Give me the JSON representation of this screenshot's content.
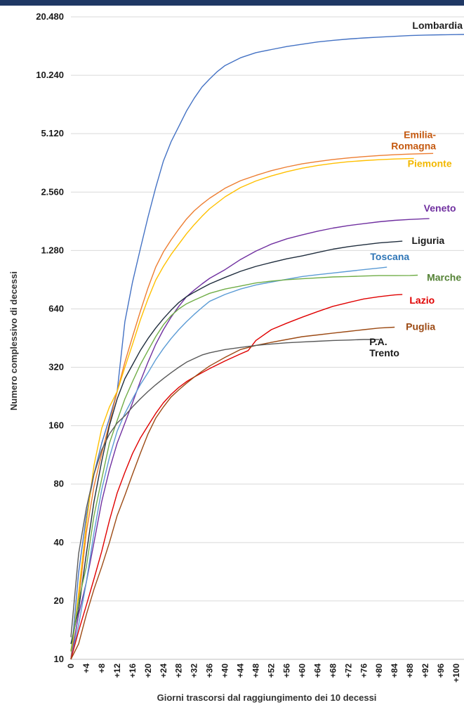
{
  "chart_data": {
    "type": "line",
    "title": "",
    "xlabel": "Giorni trascorsi dal raggiungimento dei 10 decessi",
    "ylabel": "Numero complessivo di decessi",
    "yscale": "log2",
    "ylim": [
      10,
      20480
    ],
    "xlim": [
      0,
      102
    ],
    "grid": true,
    "legend": "labels-at-line-ends",
    "y_ticks": [
      {
        "value": 10,
        "label": "10"
      },
      {
        "value": 20,
        "label": "20"
      },
      {
        "value": 40,
        "label": "40"
      },
      {
        "value": 80,
        "label": "80"
      },
      {
        "value": 160,
        "label": "160"
      },
      {
        "value": 320,
        "label": "320"
      },
      {
        "value": 640,
        "label": "640"
      },
      {
        "value": 1280,
        "label": "1.280"
      },
      {
        "value": 2560,
        "label": "2.560"
      },
      {
        "value": 5120,
        "label": "5.120"
      },
      {
        "value": 10240,
        "label": "10.240"
      },
      {
        "value": 20480,
        "label": "20.480"
      }
    ],
    "x_ticks": [
      {
        "value": 0,
        "label": "0"
      },
      {
        "value": 4,
        "label": "+4"
      },
      {
        "value": 8,
        "label": "+8"
      },
      {
        "value": 12,
        "label": "+12"
      },
      {
        "value": 16,
        "label": "+16"
      },
      {
        "value": 20,
        "label": "+20"
      },
      {
        "value": 24,
        "label": "+24"
      },
      {
        "value": 28,
        "label": "+28"
      },
      {
        "value": 32,
        "label": "+32"
      },
      {
        "value": 36,
        "label": "+36"
      },
      {
        "value": 40,
        "label": "+40"
      },
      {
        "value": 44,
        "label": "+44"
      },
      {
        "value": 48,
        "label": "+48"
      },
      {
        "value": 52,
        "label": "+52"
      },
      {
        "value": 56,
        "label": "+56"
      },
      {
        "value": 60,
        "label": "+60"
      },
      {
        "value": 64,
        "label": "+64"
      },
      {
        "value": 68,
        "label": "+68"
      },
      {
        "value": 72,
        "label": "+72"
      },
      {
        "value": 76,
        "label": "+76"
      },
      {
        "value": 80,
        "label": "+80"
      },
      {
        "value": 84,
        "label": "+84"
      },
      {
        "value": 88,
        "label": "+88"
      },
      {
        "value": 92,
        "label": "+92"
      },
      {
        "value": 96,
        "label": "+96"
      },
      {
        "value": 100,
        "label": "+100"
      }
    ],
    "series": [
      {
        "name": "Lombardia",
        "color": "#4472c4",
        "x": [
          0,
          2,
          4,
          6,
          8,
          10,
          12,
          14,
          16,
          18,
          20,
          22,
          24,
          26,
          28,
          30,
          32,
          34,
          36,
          38,
          40,
          44,
          48,
          52,
          56,
          60,
          64,
          68,
          72,
          76,
          80,
          84,
          88,
          92,
          96,
          100,
          102
        ],
        "y": [
          10,
          28,
          55,
          90,
          130,
          175,
          240,
          550,
          880,
          1300,
          1900,
          2700,
          3700,
          4650,
          5580,
          6700,
          7800,
          8900,
          9800,
          10700,
          11500,
          12600,
          13400,
          13900,
          14400,
          14800,
          15200,
          15500,
          15750,
          15950,
          16100,
          16250,
          16400,
          16500,
          16550,
          16600,
          16620
        ]
      },
      {
        "name": "Emilia-Romagna",
        "color": "#ed7d31",
        "x": [
          0,
          2,
          4,
          6,
          8,
          10,
          12,
          14,
          16,
          18,
          20,
          22,
          24,
          26,
          28,
          30,
          32,
          34,
          36,
          40,
          44,
          48,
          52,
          56,
          60,
          64,
          68,
          72,
          76,
          80,
          84,
          88,
          92,
          94
        ],
        "y": [
          11,
          20,
          45,
          78,
          115,
          165,
          240,
          340,
          460,
          620,
          820,
          1050,
          1260,
          1450,
          1650,
          1860,
          2050,
          2220,
          2380,
          2680,
          2930,
          3120,
          3300,
          3450,
          3580,
          3680,
          3770,
          3840,
          3900,
          3950,
          3990,
          4020,
          4040,
          4050
        ]
      },
      {
        "name": "Piemonte",
        "color": "#ffc000",
        "x": [
          0,
          2,
          4,
          6,
          8,
          10,
          12,
          14,
          16,
          18,
          20,
          22,
          24,
          26,
          28,
          30,
          32,
          34,
          36,
          40,
          44,
          48,
          52,
          56,
          60,
          64,
          68,
          72,
          76,
          80,
          84,
          88,
          89
        ],
        "y": [
          10,
          22,
          50,
          100,
          155,
          200,
          240,
          320,
          420,
          560,
          720,
          900,
          1060,
          1220,
          1380,
          1560,
          1740,
          1920,
          2100,
          2420,
          2700,
          2920,
          3100,
          3260,
          3400,
          3510,
          3600,
          3670,
          3720,
          3760,
          3790,
          3810,
          3815
        ]
      },
      {
        "name": "Veneto",
        "color": "#7030a0",
        "x": [
          0,
          2,
          4,
          6,
          8,
          10,
          12,
          14,
          16,
          18,
          20,
          22,
          24,
          26,
          28,
          30,
          32,
          34,
          36,
          40,
          44,
          48,
          52,
          56,
          60,
          64,
          68,
          72,
          76,
          80,
          84,
          88,
          92,
          93
        ],
        "y": [
          10,
          17,
          25,
          40,
          65,
          95,
          130,
          165,
          210,
          270,
          340,
          420,
          500,
          580,
          660,
          740,
          800,
          860,
          920,
          1020,
          1150,
          1270,
          1380,
          1470,
          1540,
          1610,
          1670,
          1720,
          1760,
          1800,
          1830,
          1850,
          1865,
          1870
        ]
      },
      {
        "name": "Liguria",
        "color": "#1f2d3d",
        "x": [
          0,
          2,
          4,
          6,
          8,
          10,
          12,
          14,
          16,
          18,
          20,
          22,
          24,
          26,
          28,
          30,
          32,
          34,
          36,
          40,
          44,
          48,
          52,
          56,
          60,
          64,
          68,
          72,
          76,
          80,
          84,
          86
        ],
        "y": [
          12,
          18,
          35,
          65,
          105,
          160,
          220,
          280,
          330,
          390,
          450,
          510,
          570,
          630,
          690,
          740,
          780,
          820,
          860,
          930,
          1000,
          1060,
          1110,
          1160,
          1200,
          1250,
          1300,
          1340,
          1370,
          1400,
          1420,
          1430
        ]
      },
      {
        "name": "Toscana",
        "color": "#5b9bd5",
        "x": [
          0,
          2,
          4,
          6,
          8,
          10,
          12,
          14,
          16,
          18,
          20,
          22,
          24,
          26,
          28,
          30,
          32,
          34,
          36,
          40,
          44,
          48,
          52,
          56,
          60,
          64,
          68,
          72,
          76,
          80,
          82
        ],
        "y": [
          10,
          15,
          25,
          45,
          75,
          110,
          150,
          185,
          220,
          260,
          300,
          350,
          400,
          450,
          500,
          550,
          600,
          650,
          700,
          760,
          810,
          850,
          880,
          910,
          940,
          960,
          980,
          1000,
          1020,
          1040,
          1050
        ]
      },
      {
        "name": "Marche",
        "color": "#70ad47",
        "x": [
          0,
          2,
          4,
          6,
          8,
          10,
          12,
          14,
          16,
          18,
          20,
          22,
          24,
          26,
          28,
          30,
          32,
          34,
          36,
          40,
          44,
          48,
          52,
          56,
          60,
          64,
          68,
          72,
          76,
          80,
          84,
          88,
          90
        ],
        "y": [
          11,
          20,
          30,
          55,
          85,
          130,
          170,
          220,
          270,
          330,
          390,
          460,
          530,
          590,
          640,
          680,
          710,
          740,
          770,
          810,
          840,
          870,
          890,
          905,
          915,
          925,
          935,
          940,
          945,
          950,
          950,
          952,
          955
        ]
      },
      {
        "name": "Lazio",
        "color": "#e00000",
        "x": [
          0,
          2,
          4,
          6,
          8,
          10,
          12,
          14,
          16,
          18,
          20,
          22,
          24,
          26,
          28,
          30,
          32,
          34,
          36,
          40,
          44,
          46,
          48,
          52,
          56,
          60,
          64,
          68,
          72,
          76,
          80,
          84,
          86
        ],
        "y": [
          10,
          14,
          19,
          26,
          36,
          52,
          72,
          92,
          115,
          138,
          160,
          185,
          210,
          232,
          252,
          270,
          285,
          300,
          315,
          345,
          375,
          390,
          440,
          500,
          540,
          580,
          620,
          660,
          690,
          720,
          740,
          755,
          760
        ]
      },
      {
        "name": "Puglia",
        "color": "#9c4a14",
        "x": [
          0,
          2,
          4,
          6,
          8,
          10,
          12,
          14,
          16,
          18,
          20,
          22,
          24,
          26,
          28,
          30,
          32,
          34,
          36,
          40,
          44,
          48,
          52,
          56,
          60,
          64,
          68,
          72,
          76,
          80,
          84
        ],
        "y": [
          10,
          12,
          17,
          23,
          30,
          40,
          55,
          70,
          90,
          115,
          145,
          175,
          200,
          225,
          245,
          265,
          285,
          305,
          325,
          360,
          395,
          415,
          430,
          445,
          460,
          470,
          480,
          490,
          500,
          510,
          515
        ]
      },
      {
        "name": "P.A. Trento",
        "color": "#595959",
        "x": [
          0,
          2,
          4,
          6,
          8,
          10,
          12,
          14,
          16,
          18,
          20,
          22,
          24,
          26,
          28,
          30,
          32,
          34,
          36,
          40,
          44,
          48,
          52,
          56,
          60,
          64,
          68,
          72,
          76,
          80
        ],
        "y": [
          13,
          35,
          60,
          90,
          120,
          145,
          165,
          180,
          200,
          220,
          240,
          260,
          280,
          300,
          320,
          340,
          355,
          370,
          380,
          395,
          405,
          415,
          422,
          428,
          432,
          436,
          440,
          442,
          445,
          445
        ]
      }
    ],
    "labels": [
      {
        "series": "Lombardia",
        "lines": [
          "Lombardia"
        ],
        "color": "#1f1f1f",
        "anchor": "end"
      },
      {
        "series": "Emilia-Romagna",
        "lines": [
          "Emilia-",
          "Romagna"
        ],
        "color": "#c55a11",
        "anchor": "end"
      },
      {
        "series": "Piemonte",
        "lines": [
          "Piemonte"
        ],
        "color": "#f2b800",
        "anchor": "end"
      },
      {
        "series": "Veneto",
        "lines": [
          "Veneto"
        ],
        "color": "#7030a0",
        "anchor": "end"
      },
      {
        "series": "Liguria",
        "lines": [
          "Liguria"
        ],
        "color": "#1a1a1a",
        "anchor": "end"
      },
      {
        "series": "Toscana",
        "lines": [
          "Toscana"
        ],
        "color": "#2e75b6",
        "anchor": "end"
      },
      {
        "series": "Marche",
        "lines": [
          "Marche"
        ],
        "color": "#548235",
        "anchor": "end"
      },
      {
        "series": "Lazio",
        "lines": [
          "Lazio"
        ],
        "color": "#e00000",
        "anchor": "end"
      },
      {
        "series": "Puglia",
        "lines": [
          "Puglia"
        ],
        "color": "#9c4a14",
        "anchor": "end"
      },
      {
        "series": "P.A. Trento",
        "lines": [
          "P.A.",
          "Trento"
        ],
        "color": "#1a1a1a",
        "anchor": "start"
      }
    ]
  }
}
